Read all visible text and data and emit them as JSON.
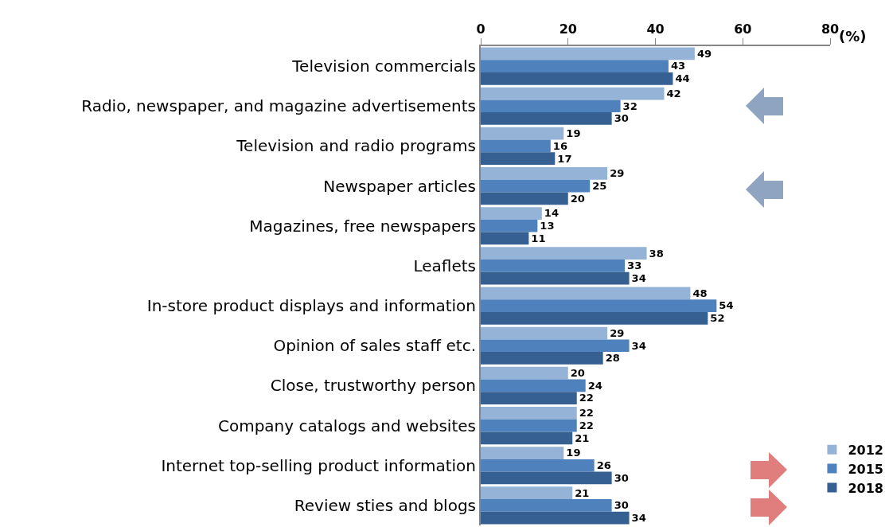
{
  "chart_data": {
    "type": "bar",
    "orientation": "horizontal",
    "xlabel": "(%)",
    "categories": [
      "Television commercials",
      "Radio, newspaper, and magazine advertisements",
      "Television and radio programs",
      "Newspaper articles",
      "Magazines, free newspapers",
      "Leaflets",
      "In-store product displays and information",
      "Opinion of sales staff etc.",
      "Close, trustworthy person",
      "Company catalogs and websites",
      "Internet top-selling product information",
      "Review sties and blogs"
    ],
    "series": [
      {
        "name": "2012",
        "color": "#95b3d7",
        "values": [
          49,
          42,
          19,
          29,
          14,
          38,
          48,
          29,
          20,
          22,
          19,
          21
        ]
      },
      {
        "name": "2015",
        "color": "#4f81bd",
        "values": [
          43,
          32,
          16,
          25,
          13,
          33,
          54,
          34,
          24,
          22,
          26,
          30
        ]
      },
      {
        "name": "2018",
        "color": "#366092",
        "values": [
          44,
          30,
          17,
          20,
          11,
          34,
          52,
          28,
          22,
          21,
          30,
          34
        ]
      }
    ],
    "xlim": [
      0,
      80
    ],
    "xticks": [
      0,
      20,
      40,
      60,
      80
    ],
    "grid": false,
    "legend": "bottom right",
    "data_labels": true
  }
}
